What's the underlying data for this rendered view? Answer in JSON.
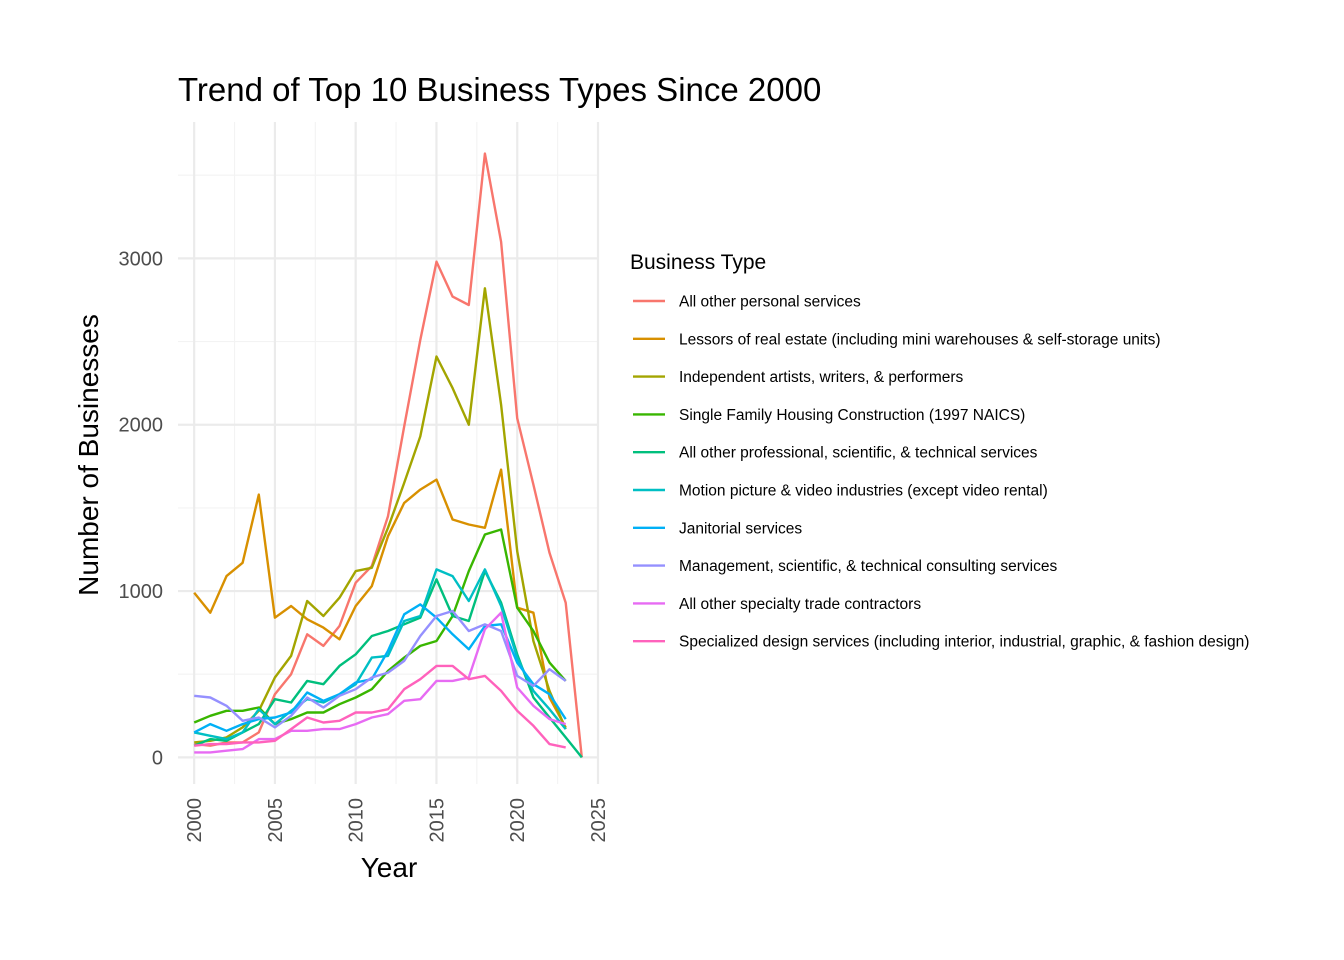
{
  "chart_data": {
    "type": "line",
    "title": "Trend of Top 10 Business Types Since 2000",
    "xlabel": "Year",
    "ylabel": "Number of Businesses",
    "xlim": [
      1999,
      2025
    ],
    "ylim": [
      -160,
      3820
    ],
    "x_ticks": [
      "2000",
      "2005",
      "2010",
      "2015",
      "2020",
      "2025"
    ],
    "y_ticks": [
      "0",
      "1000",
      "2000",
      "3000"
    ],
    "grid": true,
    "legend": {
      "title": "Business Type",
      "position": "right"
    },
    "x": [
      2000,
      2001,
      2002,
      2003,
      2004,
      2005,
      2006,
      2007,
      2008,
      2009,
      2010,
      2011,
      2012,
      2013,
      2014,
      2015,
      2016,
      2017,
      2018,
      2019,
      2020,
      2021,
      2022,
      2023,
      2024
    ],
    "series": [
      {
        "name": "All other personal services",
        "color": "#F8766D",
        "values": [
          80,
          70,
          90,
          90,
          150,
          380,
          500,
          740,
          670,
          790,
          1050,
          1150,
          1450,
          1990,
          2510,
          2980,
          2770,
          2720,
          3630,
          3100,
          2040,
          1640,
          1230,
          930,
          0
        ]
      },
      {
        "name": "Lessors of real estate (including mini warehouses & self-storage units)",
        "color": "#D89000",
        "values": [
          990,
          870,
          1090,
          1170,
          1580,
          840,
          910,
          830,
          780,
          710,
          910,
          1030,
          1330,
          1530,
          1610,
          1670,
          1430,
          1400,
          1380,
          1730,
          900,
          870,
          360,
          180,
          null
        ]
      },
      {
        "name": "Independent artists, writers, & performers",
        "color": "#A3A500",
        "values": [
          90,
          100,
          120,
          180,
          280,
          480,
          610,
          940,
          850,
          960,
          1120,
          1140,
          1380,
          1650,
          1930,
          2410,
          2220,
          2000,
          2820,
          2120,
          1240,
          700,
          400,
          170,
          null
        ]
      },
      {
        "name": "Single Family Housing Construction (1997 NAICS)",
        "color": "#39B600",
        "values": [
          210,
          250,
          280,
          280,
          300,
          200,
          230,
          270,
          270,
          320,
          360,
          410,
          520,
          600,
          670,
          700,
          850,
          1120,
          1340,
          1370,
          900,
          760,
          570,
          460,
          null
        ]
      },
      {
        "name": "All other professional, scientific, & technical services",
        "color": "#00BF7D",
        "values": [
          70,
          110,
          100,
          150,
          200,
          350,
          330,
          460,
          440,
          550,
          620,
          730,
          760,
          800,
          840,
          1070,
          850,
          820,
          1120,
          930,
          620,
          360,
          240,
          120,
          0
        ]
      },
      {
        "name": "Motion picture & video industries (except video rental)",
        "color": "#00BFC4",
        "values": [
          150,
          130,
          110,
          150,
          290,
          200,
          280,
          350,
          330,
          380,
          440,
          600,
          610,
          820,
          850,
          1130,
          1090,
          940,
          1130,
          910,
          600,
          400,
          290,
          170,
          null
        ]
      },
      {
        "name": "Janitorial services",
        "color": "#00B0F6",
        "values": [
          150,
          200,
          160,
          200,
          230,
          240,
          270,
          390,
          340,
          380,
          450,
          470,
          640,
          860,
          920,
          840,
          740,
          650,
          790,
          800,
          570,
          440,
          380,
          230,
          null
        ]
      },
      {
        "name": "Management, scientific, & technical consulting services",
        "color": "#9590FF",
        "values": [
          370,
          360,
          310,
          220,
          240,
          180,
          250,
          360,
          300,
          370,
          410,
          480,
          510,
          580,
          730,
          850,
          880,
          760,
          800,
          760,
          490,
          430,
          530,
          460,
          null
        ]
      },
      {
        "name": "All other specialty trade contractors",
        "color": "#E76BF3",
        "values": [
          30,
          30,
          40,
          50,
          110,
          110,
          160,
          160,
          170,
          170,
          200,
          240,
          260,
          340,
          350,
          460,
          460,
          480,
          770,
          870,
          420,
          310,
          230,
          200,
          null
        ]
      },
      {
        "name": "Specialized design services (including interior, industrial, graphic, & fashion design)",
        "color": "#FF62BC",
        "values": [
          70,
          80,
          80,
          90,
          90,
          100,
          170,
          240,
          210,
          220,
          270,
          270,
          290,
          410,
          470,
          550,
          550,
          470,
          490,
          400,
          280,
          190,
          80,
          60,
          null
        ]
      }
    ]
  }
}
